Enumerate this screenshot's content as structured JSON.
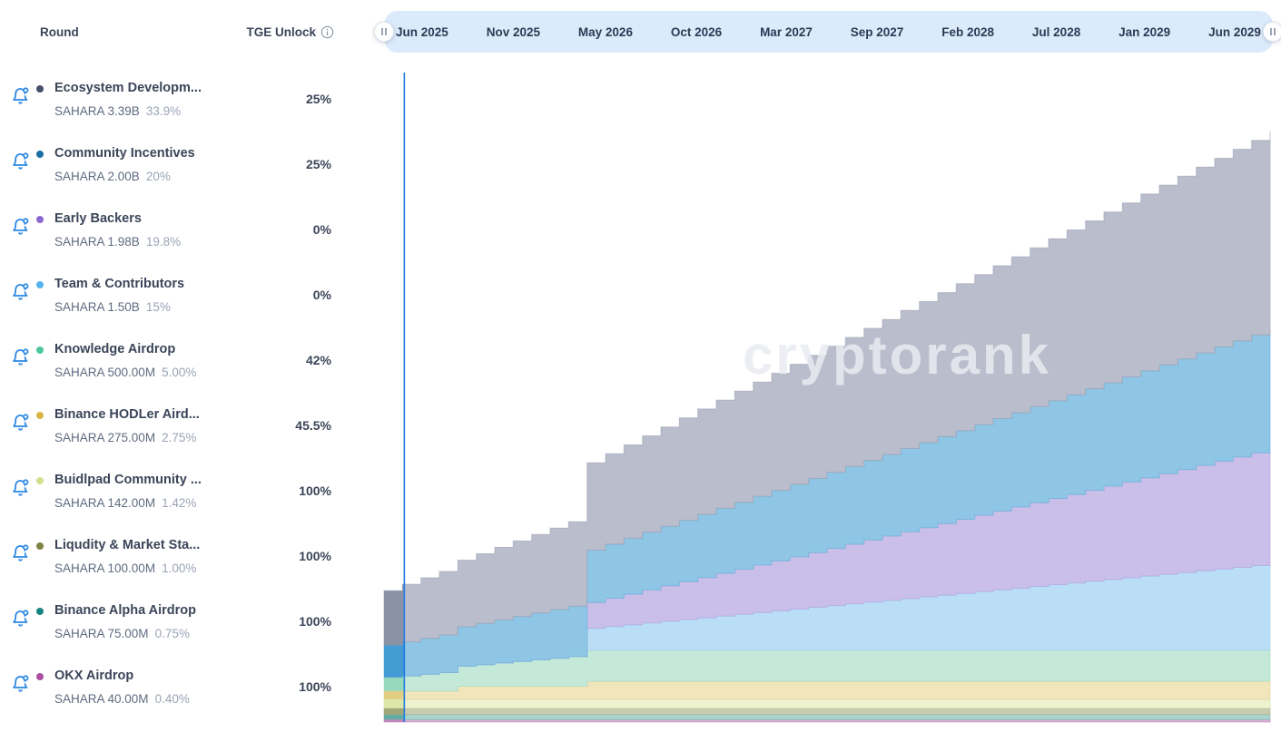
{
  "header": {
    "round_label": "Round",
    "tge_unlock_label": "TGE Unlock",
    "info_icon": "info-circle",
    "accent_blue": "#2b87e3",
    "text_dark": "#3b4559"
  },
  "timeline": {
    "labels": [
      "Jun 2025",
      "Nov 2025",
      "May 2026",
      "Oct 2026",
      "Mar 2027",
      "Sep 2027",
      "Feb 2028",
      "Jul 2028",
      "Jan 2029",
      "Jun 2029"
    ],
    "bar_color": "#dcebfb",
    "label_color": "#2c3a55"
  },
  "watermark": "cryptorank",
  "rounds": [
    {
      "name": "Ecosystem Developm...",
      "amount": "SAHARA 3.39B",
      "share": "33.9%",
      "tge_unlock": "25%",
      "dot_color": "#474f6b"
    },
    {
      "name": "Community Incentives",
      "amount": "SAHARA 2.00B",
      "share": "20%",
      "tge_unlock": "25%",
      "dot_color": "#1b6fa8"
    },
    {
      "name": "Early Backers",
      "amount": "SAHARA 1.98B",
      "share": "19.8%",
      "tge_unlock": "0%",
      "dot_color": "#8a68cf"
    },
    {
      "name": "Team & Contributors",
      "amount": "SAHARA 1.50B",
      "share": "15%",
      "tge_unlock": "0%",
      "dot_color": "#56b3f0"
    },
    {
      "name": "Knowledge Airdrop",
      "amount": "SAHARA 500.00M",
      "share": "5.00%",
      "tge_unlock": "42%",
      "dot_color": "#4ec79c"
    },
    {
      "name": "Binance HODLer Aird...",
      "amount": "SAHARA 275.00M",
      "share": "2.75%",
      "tge_unlock": "45.5%",
      "dot_color": "#d9b545"
    },
    {
      "name": "Buidlpad Community ...",
      "amount": "SAHARA 142.00M",
      "share": "1.42%",
      "tge_unlock": "100%",
      "dot_color": "#cde289"
    },
    {
      "name": "Liqudity & Market Sta...",
      "amount": "SAHARA 100.00M",
      "share": "1.00%",
      "tge_unlock": "100%",
      "dot_color": "#7e8243"
    },
    {
      "name": "Binance Alpha Airdrop",
      "amount": "SAHARA 75.00M",
      "share": "0.75%",
      "tge_unlock": "100%",
      "dot_color": "#17877e"
    },
    {
      "name": "OKX Airdrop",
      "amount": "SAHARA 40.00M",
      "share": "0.40%",
      "tge_unlock": "100%",
      "dot_color": "#ab4fa2"
    }
  ],
  "chart_data": {
    "type": "area",
    "stacked": true,
    "step": true,
    "x_tick_labels": [
      "Jun 2025",
      "Nov 2025",
      "May 2026",
      "Oct 2026",
      "Mar 2027",
      "Sep 2027",
      "Feb 2028",
      "Jul 2028",
      "Jan 2029",
      "Jun 2029"
    ],
    "x_unit": "months after TGE (Jun 2025), 0..48",
    "y_axis_visible": false,
    "unit": "cumulative unlocked, % of total supply",
    "current_date_line": {
      "month_index": 1.1,
      "color": "#1f7be2"
    },
    "legend_position": "left-panel",
    "series": [
      {
        "name": "OKX Airdrop",
        "fill": "#d9afd4",
        "fill_past": "#c383bc",
        "stroke": "#c08abb",
        "values": [
          0.4,
          0.4,
          0.4,
          0.4,
          0.4,
          0.4,
          0.4,
          0.4,
          0.4,
          0.4,
          0.4,
          0.4,
          0.4,
          0.4,
          0.4,
          0.4,
          0.4,
          0.4,
          0.4,
          0.4,
          0.4,
          0.4,
          0.4,
          0.4,
          0.4,
          0.4,
          0.4,
          0.4,
          0.4,
          0.4,
          0.4,
          0.4,
          0.4,
          0.4,
          0.4,
          0.4,
          0.4,
          0.4,
          0.4,
          0.4,
          0.4,
          0.4,
          0.4,
          0.4,
          0.4,
          0.4,
          0.4,
          0.4,
          0.4
        ]
      },
      {
        "name": "Binance Alpha Airdrop",
        "fill": "#a8d4ce",
        "fill_past": "#62aca4",
        "stroke": "#7fbab3",
        "values": [
          0.75,
          0.75,
          0.75,
          0.75,
          0.75,
          0.75,
          0.75,
          0.75,
          0.75,
          0.75,
          0.75,
          0.75,
          0.75,
          0.75,
          0.75,
          0.75,
          0.75,
          0.75,
          0.75,
          0.75,
          0.75,
          0.75,
          0.75,
          0.75,
          0.75,
          0.75,
          0.75,
          0.75,
          0.75,
          0.75,
          0.75,
          0.75,
          0.75,
          0.75,
          0.75,
          0.75,
          0.75,
          0.75,
          0.75,
          0.75,
          0.75,
          0.75,
          0.75,
          0.75,
          0.75,
          0.75,
          0.75,
          0.75,
          0.75
        ]
      },
      {
        "name": "Liqudity & Market Stability",
        "fill": "#c7cbb0",
        "fill_past": "#a0a878",
        "stroke": "#a9ae8c",
        "values": [
          1.0,
          1.0,
          1.0,
          1.0,
          1.0,
          1.0,
          1.0,
          1.0,
          1.0,
          1.0,
          1.0,
          1.0,
          1.0,
          1.0,
          1.0,
          1.0,
          1.0,
          1.0,
          1.0,
          1.0,
          1.0,
          1.0,
          1.0,
          1.0,
          1.0,
          1.0,
          1.0,
          1.0,
          1.0,
          1.0,
          1.0,
          1.0,
          1.0,
          1.0,
          1.0,
          1.0,
          1.0,
          1.0,
          1.0,
          1.0,
          1.0,
          1.0,
          1.0,
          1.0,
          1.0,
          1.0,
          1.0,
          1.0,
          1.0
        ]
      },
      {
        "name": "Buidlpad Community Round",
        "fill": "#edf2cf",
        "fill_past": "#dde7a8",
        "stroke": "#d9e2af",
        "values": [
          1.42,
          1.42,
          1.42,
          1.42,
          1.42,
          1.42,
          1.42,
          1.42,
          1.42,
          1.42,
          1.42,
          1.42,
          1.42,
          1.42,
          1.42,
          1.42,
          1.42,
          1.42,
          1.42,
          1.42,
          1.42,
          1.42,
          1.42,
          1.42,
          1.42,
          1.42,
          1.42,
          1.42,
          1.42,
          1.42,
          1.42,
          1.42,
          1.42,
          1.42,
          1.42,
          1.42,
          1.42,
          1.42,
          1.42,
          1.42,
          1.42,
          1.42,
          1.42,
          1.42,
          1.42,
          1.42,
          1.42,
          1.42,
          1.42
        ]
      },
      {
        "name": "Binance HODLer Airdrop",
        "fill": "#f1e5bc",
        "fill_past": "#e3cd82",
        "stroke": "#e0cf92",
        "values": [
          1.25,
          1.25,
          1.25,
          1.25,
          2.0,
          2.0,
          2.0,
          2.0,
          2.0,
          2.0,
          2.0,
          2.75,
          2.75,
          2.75,
          2.75,
          2.75,
          2.75,
          2.75,
          2.75,
          2.75,
          2.75,
          2.75,
          2.75,
          2.75,
          2.75,
          2.75,
          2.75,
          2.75,
          2.75,
          2.75,
          2.75,
          2.75,
          2.75,
          2.75,
          2.75,
          2.75,
          2.75,
          2.75,
          2.75,
          2.75,
          2.75,
          2.75,
          2.75,
          2.75,
          2.75,
          2.75,
          2.75,
          2.75,
          2.75
        ]
      },
      {
        "name": "Knowledge Airdrop",
        "fill": "#c4e9d8",
        "fill_past": "#96d9bc",
        "stroke": "#a3dcc4",
        "values": [
          2.1,
          2.35,
          2.6,
          2.85,
          3.1,
          3.35,
          3.6,
          3.85,
          4.1,
          4.35,
          4.6,
          4.85,
          4.85,
          4.85,
          4.85,
          4.85,
          4.85,
          4.85,
          4.85,
          4.85,
          4.85,
          4.85,
          4.85,
          4.85,
          4.85,
          4.85,
          4.85,
          4.85,
          4.85,
          4.85,
          4.85,
          4.85,
          4.85,
          4.85,
          4.85,
          4.85,
          4.85,
          4.85,
          4.85,
          4.85,
          4.85,
          4.85,
          4.85,
          4.85,
          4.85,
          4.85,
          4.85,
          4.85,
          4.85
        ]
      },
      {
        "name": "Team & Contributors",
        "fill": "#b9def6",
        "fill_past": "#7cc3f0",
        "stroke": "#9dcfef",
        "values": [
          0,
          0,
          0,
          0,
          0,
          0,
          0,
          0,
          0,
          0,
          0,
          3.4,
          3.67,
          3.94,
          4.21,
          4.48,
          4.75,
          5.02,
          5.29,
          5.56,
          5.83,
          6.1,
          6.37,
          6.64,
          6.91,
          7.18,
          7.45,
          7.72,
          7.99,
          8.26,
          8.53,
          8.8,
          9.07,
          9.34,
          9.61,
          9.88,
          10.15,
          10.42,
          10.69,
          10.96,
          11.23,
          11.5,
          11.77,
          12.04,
          12.31,
          12.58,
          12.85,
          13.12,
          13.39
        ]
      },
      {
        "name": "Early Backers",
        "fill": "#c9bfe8",
        "fill_past": "#a490d8",
        "stroke": "#b1a3de",
        "values": [
          0,
          0,
          0,
          0,
          0,
          0,
          0,
          0,
          0,
          0,
          0,
          4.0,
          4.38,
          4.75,
          5.13,
          5.5,
          5.88,
          6.25,
          6.63,
          7.0,
          7.38,
          7.75,
          8.13,
          8.5,
          8.88,
          9.25,
          9.63,
          10.0,
          10.38,
          10.75,
          11.13,
          11.5,
          11.88,
          12.25,
          12.63,
          13.0,
          13.38,
          13.75,
          14.13,
          14.5,
          14.88,
          15.25,
          15.63,
          16.0,
          16.38,
          16.75,
          17.13,
          17.5,
          17.88
        ]
      },
      {
        "name": "Community Incentives",
        "fill": "#8fc6e5",
        "fill_past": "#459bd4",
        "stroke": "#66aed8",
        "values": [
          5.0,
          5.28,
          5.57,
          5.85,
          6.13,
          6.42,
          6.7,
          6.98,
          7.27,
          7.55,
          7.83,
          8.12,
          8.4,
          8.68,
          8.97,
          9.25,
          9.53,
          9.82,
          10.1,
          10.38,
          10.67,
          10.95,
          11.23,
          11.52,
          11.8,
          12.08,
          12.37,
          12.65,
          12.93,
          13.22,
          13.5,
          13.78,
          14.07,
          14.35,
          14.63,
          14.92,
          15.2,
          15.48,
          15.77,
          16.05,
          16.33,
          16.62,
          16.9,
          17.18,
          17.47,
          17.75,
          18.03,
          18.32,
          18.6
        ]
      },
      {
        "name": "Ecosystem Development",
        "fill": "#babdcb",
        "fill_past": "#8b92a6",
        "stroke": "#9ba0b2",
        "values": [
          8.48,
          8.94,
          9.4,
          9.86,
          10.33,
          10.79,
          11.25,
          11.71,
          12.18,
          12.64,
          13.1,
          13.56,
          14.03,
          14.49,
          14.95,
          15.41,
          15.88,
          16.34,
          16.8,
          17.26,
          17.73,
          18.19,
          18.65,
          19.11,
          19.58,
          20.04,
          20.5,
          20.96,
          21.43,
          21.89,
          22.35,
          22.81,
          23.28,
          23.74,
          24.2,
          24.66,
          25.13,
          25.59,
          26.05,
          26.51,
          26.98,
          27.44,
          27.9,
          28.36,
          28.83,
          29.29,
          29.75,
          30.21,
          30.68
        ]
      }
    ]
  }
}
